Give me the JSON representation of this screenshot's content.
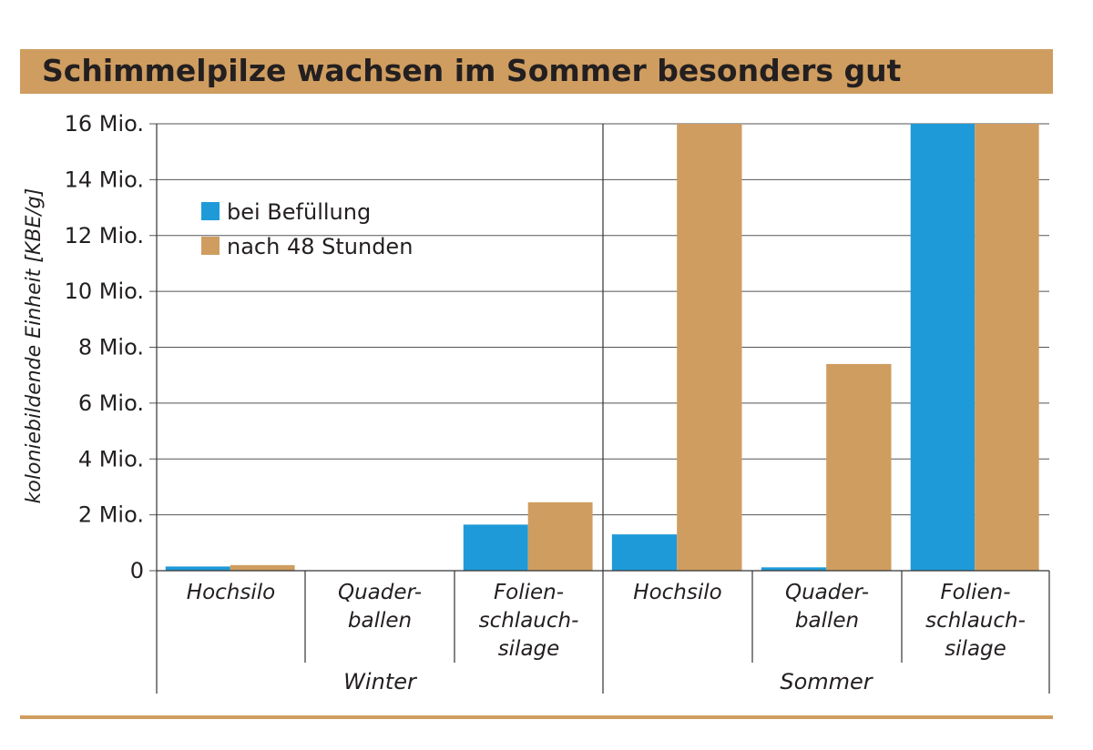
{
  "title": "Schimmelpilze wachsen im Sommer besonders gut",
  "chart_data": {
    "type": "bar",
    "title": "Schimmelpilze wachsen im Sommer besonders gut",
    "ylabel": "koloniebildende Einheit [KBE/g]",
    "xlabel": "",
    "ylim": [
      0,
      16
    ],
    "y_ticks": [
      0,
      2,
      4,
      6,
      8,
      10,
      12,
      14,
      16
    ],
    "y_tick_labels": [
      "0",
      "2 Mio.",
      "4 Mio.",
      "6 Mio.",
      "8 Mio.",
      "10 Mio.",
      "12 Mio.",
      "14 Mio.",
      "16 Mio."
    ],
    "categories": [
      "Hochsilo",
      "Quader-\nballen",
      "Folien-\nschlauch-\nsilage",
      "Hochsilo",
      "Quader-\nballen",
      "Folien-\nschlauch-\nsilage"
    ],
    "groups": [
      {
        "name": "Winter",
        "categories": [
          0,
          1,
          2
        ]
      },
      {
        "name": "Sommer",
        "categories": [
          3,
          4,
          5
        ]
      }
    ],
    "series": [
      {
        "name": "bei Befüllung",
        "color": "#1f9ad8",
        "values": [
          0.15,
          0,
          1.65,
          1.3,
          0.12,
          16
        ]
      },
      {
        "name": "nach 48 Stunden",
        "color": "#cf9d60",
        "values": [
          0.2,
          0,
          2.45,
          16,
          7.4,
          16
        ]
      }
    ],
    "grid": true,
    "legend_position": "top-left"
  }
}
